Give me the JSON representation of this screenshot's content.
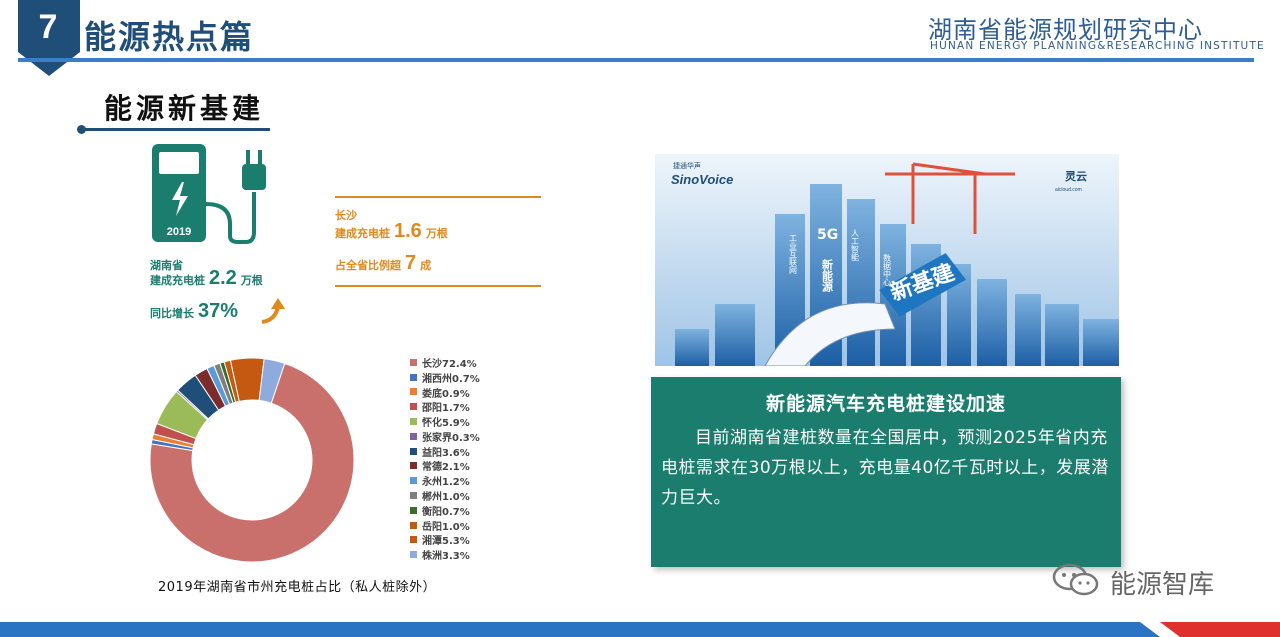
{
  "header": {
    "number": "7",
    "title": "能源热点篇",
    "institute_cn": "湖南省能源规划研究中心",
    "institute_en": "HUNAN ENERGY PLANNING&RESEARCHING INSTITUTE"
  },
  "section": {
    "title": "能源新基建"
  },
  "charger": {
    "year": "2019"
  },
  "stats": {
    "province_label": "湖南省",
    "province_built_prefix": "建成充电桩",
    "province_value": "2.2",
    "province_unit": "万根",
    "growth_label": "同比增长",
    "growth_value": "37%",
    "city_label": "长沙",
    "city_built_prefix": "建成充电桩",
    "city_value": "1.6",
    "city_unit": "万根",
    "share_prefix": "占全省比例超",
    "share_value": "7",
    "share_unit": "成"
  },
  "chart_data": {
    "type": "pie",
    "title": "2019年湖南省市州充电桩占比（私人桩除外）",
    "categories": [
      "长沙",
      "湘西州",
      "娄底",
      "邵阳",
      "怀化",
      "张家界",
      "益阳",
      "常德",
      "永州",
      "郴州",
      "衡阳",
      "岳阳",
      "湘潭",
      "株洲"
    ],
    "values": [
      72.4,
      0.7,
      0.9,
      1.7,
      5.9,
      0.3,
      3.6,
      2.1,
      1.2,
      1.0,
      0.7,
      1.0,
      5.3,
      3.3
    ],
    "labels": [
      "长沙72.4%",
      "湘西州0.7%",
      "娄底0.9%",
      "邵阳1.7%",
      "怀化5.9%",
      "张家界0.3%",
      "益阳3.6%",
      "常德2.1%",
      "永州1.2%",
      "郴州1.0%",
      "衡阳0.7%",
      "岳阳1.0%",
      "湘潭5.3%",
      "株洲3.3%"
    ],
    "colors": [
      "#c9706c",
      "#4472c4",
      "#ed7d31",
      "#c0504d",
      "#9bbb59",
      "#8064a2",
      "#1f4e79",
      "#7b2c2c",
      "#5b9bd5",
      "#7f7f7f",
      "#3f6b2e",
      "#c55a11",
      "#c65911",
      "#8faadc"
    ],
    "legend_position": "right"
  },
  "photo": {
    "brand_cn": "捷通华声",
    "brand_en": "SinoVoice",
    "partner": "灵云",
    "partner_sub": "aicloud.com",
    "tags": [
      "5G",
      "新能源",
      "工业互联网",
      "人工智能",
      "数据中心",
      "新基建"
    ]
  },
  "info_box": {
    "title": "新能源汽车充电桩建设加速",
    "body": "目前湖南省建桩数量在全国居中，预测2025年省内充电桩需求在30万根以上，充电量40亿千瓦时以上，发展潜力巨大。"
  },
  "watermark": {
    "text": "能源智库"
  }
}
